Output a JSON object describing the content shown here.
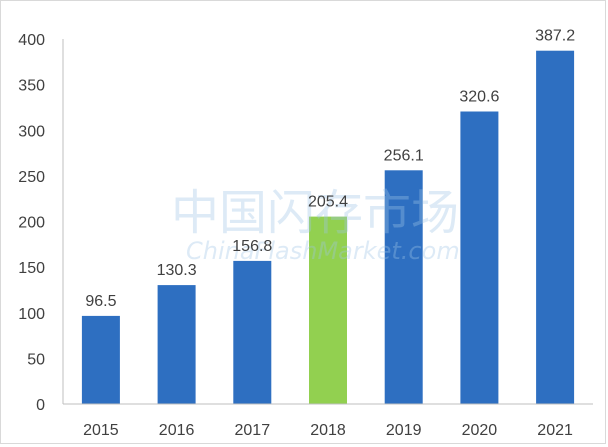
{
  "chart_data": {
    "type": "bar",
    "categories": [
      "2015",
      "2016",
      "2017",
      "2018",
      "2019",
      "2020",
      "2021"
    ],
    "values": [
      96.5,
      130.3,
      156.8,
      205.4,
      256.1,
      320.6,
      387.2
    ],
    "value_labels": [
      "96.5",
      "130.3",
      "156.8",
      "205.4",
      "256.1",
      "320.6",
      "387.2"
    ],
    "y_ticks": [
      "0",
      "50",
      "100",
      "150",
      "200",
      "250",
      "300",
      "350",
      "400"
    ],
    "ylim": [
      0,
      400
    ],
    "bar_colors": [
      "#2e6fc1",
      "#2e6fc1",
      "#2e6fc1",
      "#92d050",
      "#2e6fc1",
      "#2e6fc1",
      "#2e6fc1"
    ],
    "axis_color": "#bfbfbf",
    "grid": false,
    "legend": "none"
  },
  "watermark": {
    "text_cn": "中国闪存市场",
    "text_en": "ChinaFlashMarket.com"
  }
}
